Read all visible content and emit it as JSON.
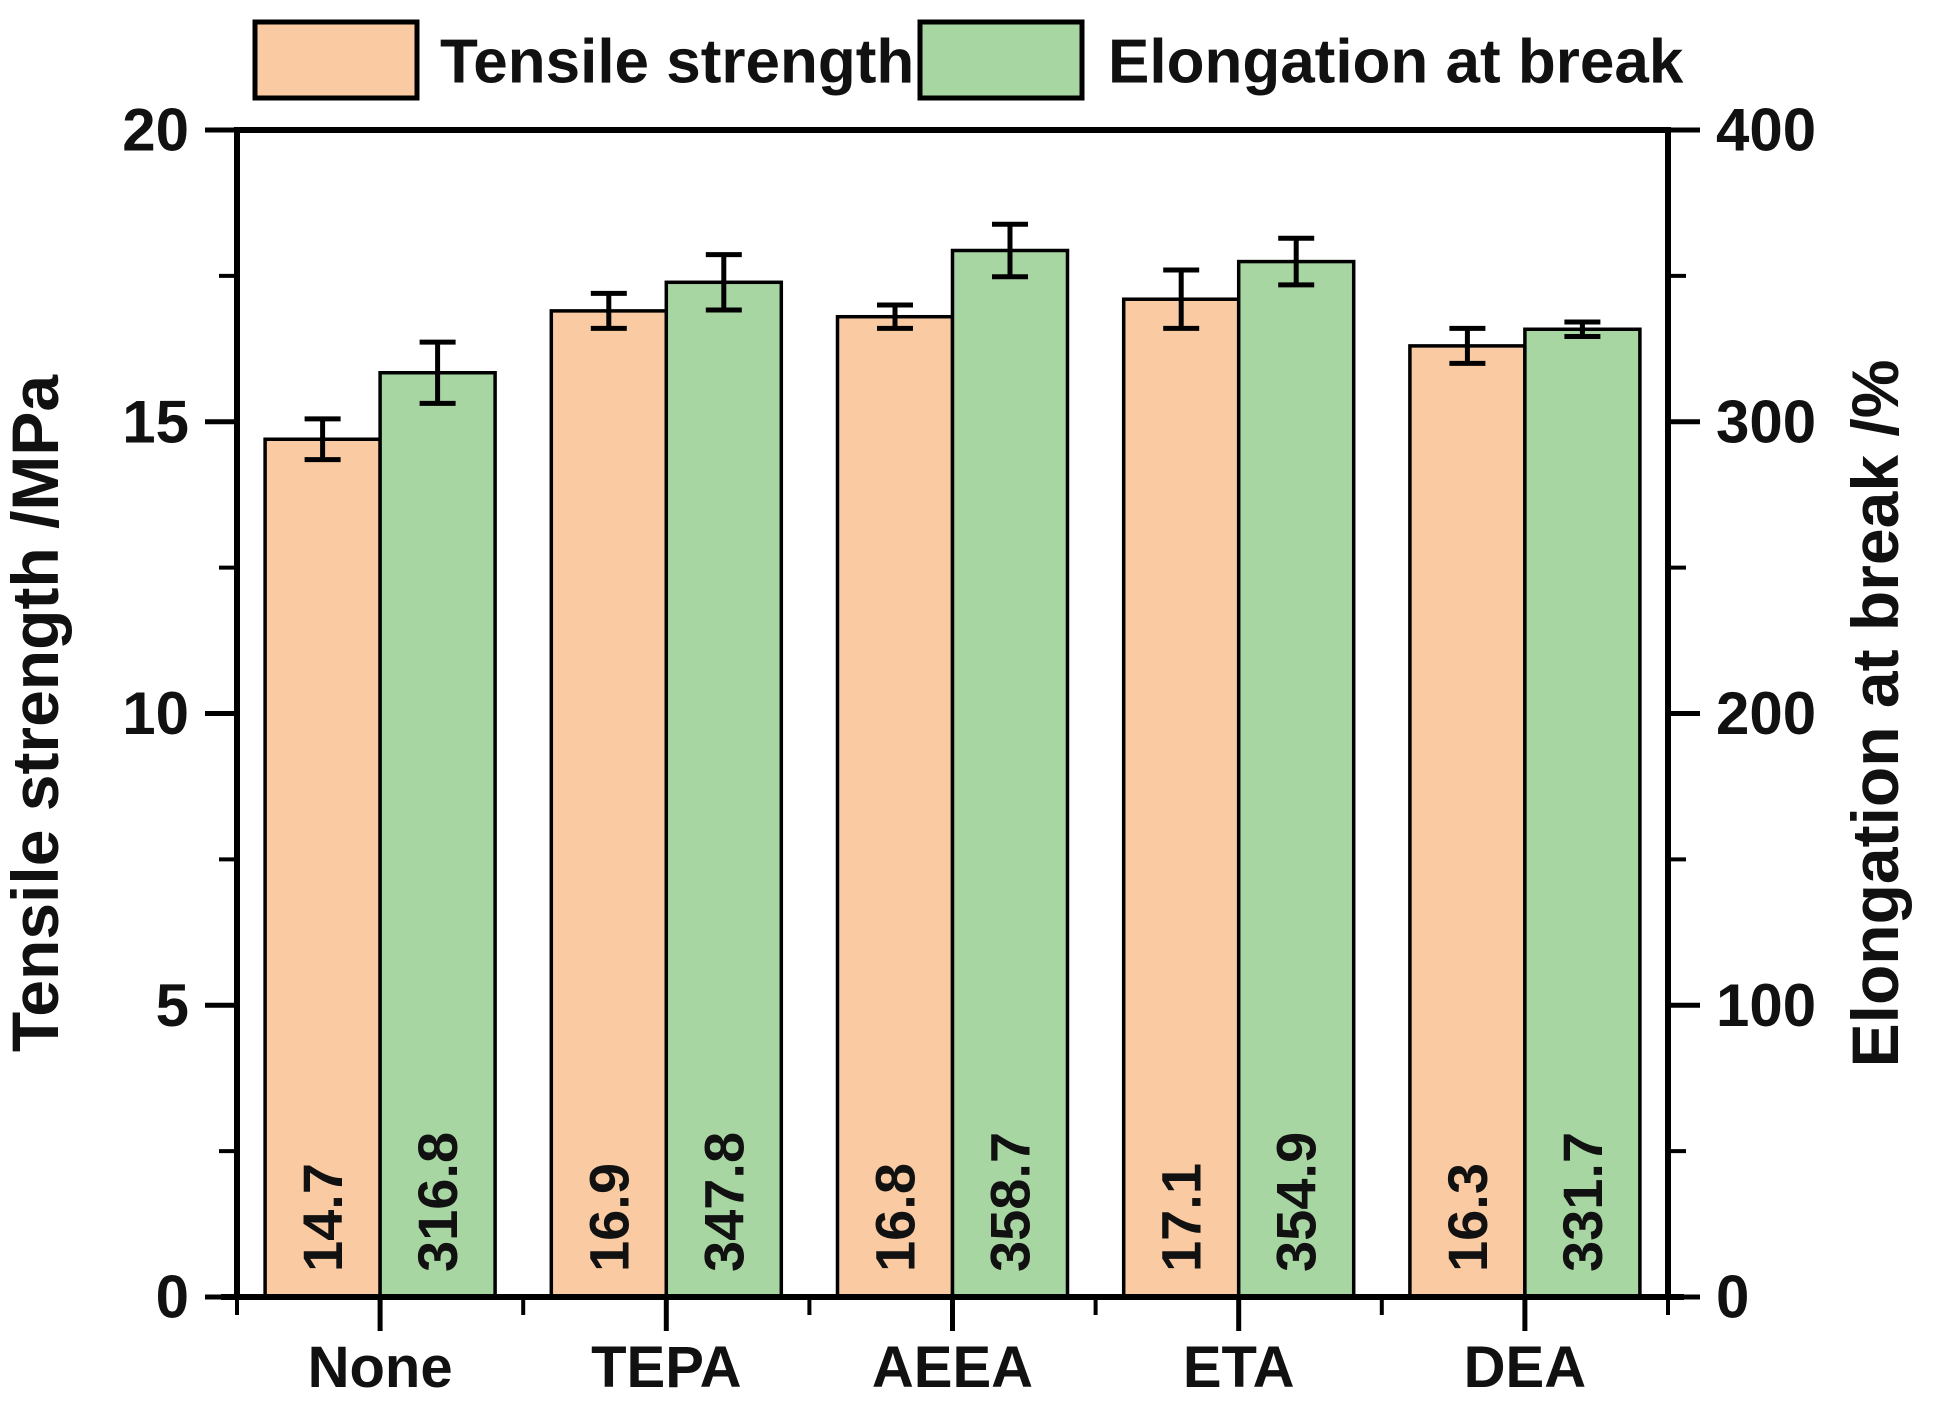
{
  "chart_data": {
    "type": "bar",
    "title": "",
    "categories": [
      "None",
      "TEPA",
      "AEEA",
      "ETA",
      "DEA"
    ],
    "series": [
      {
        "name": "Tensile strength",
        "axis": "left",
        "color": "#FACBA3",
        "values": [
          14.7,
          16.9,
          16.8,
          17.1,
          16.3
        ],
        "errors": [
          0.35,
          0.3,
          0.2,
          0.5,
          0.3
        ],
        "value_labels": [
          "14.7",
          "16.9",
          "16.8",
          "17.1",
          "16.3"
        ]
      },
      {
        "name": "Elongation at break",
        "axis": "right",
        "color": "#A8D6A3",
        "values": [
          316.8,
          347.8,
          358.7,
          354.9,
          331.7
        ],
        "errors": [
          10.5,
          9.5,
          9.0,
          8.0,
          2.5
        ],
        "value_labels": [
          "316.8",
          "347.8",
          "358.7",
          "354.9",
          "331.7"
        ]
      }
    ],
    "left_axis": {
      "label": "Tensile strength /MPa",
      "min": 0,
      "max": 20,
      "major_ticks": [
        0,
        5,
        10,
        15,
        20
      ],
      "minor_step": 2.5
    },
    "right_axis": {
      "label": "Elongation at break /%",
      "min": 0,
      "max": 400,
      "major_ticks": [
        0,
        100,
        200,
        300,
        400
      ],
      "minor_step": 50
    },
    "legend": {
      "position": "top",
      "entries": [
        "Tensile strength",
        "Elongation at break"
      ]
    },
    "grid": false,
    "bar_value_label_style": "rotated-90-inside-above-baseline",
    "error_bar_color": "#000000",
    "bar_border_color": "#000000",
    "axis_color": "#000000",
    "background_color": "#ffffff"
  }
}
